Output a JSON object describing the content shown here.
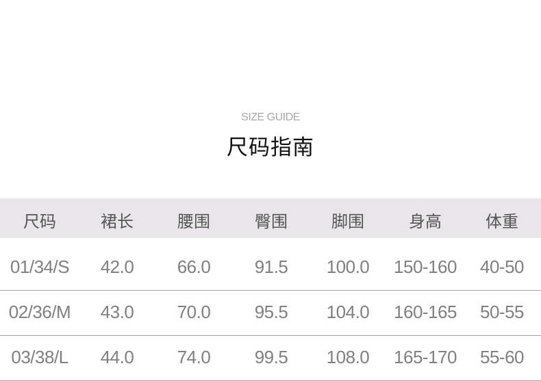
{
  "subtitle": "SIZE GUIDE",
  "title": "尺码指南",
  "table": {
    "headers": [
      "尺码",
      "裙长",
      "腰围",
      "臀围",
      "脚围",
      "身高",
      "体重"
    ],
    "rows": [
      [
        "01/34/S",
        "42.0",
        "66.0",
        "91.5",
        "100.0",
        "150-160",
        "40-50"
      ],
      [
        "02/36/M",
        "43.0",
        "70.0",
        "95.5",
        "104.0",
        "160-165",
        "50-55"
      ],
      [
        "03/38/L",
        "44.0",
        "74.0",
        "99.5",
        "108.0",
        "165-170",
        "55-60"
      ]
    ]
  },
  "colors": {
    "header_bg": "#e8e6e9",
    "text": "#808080",
    "divider": "#a0a0a0"
  }
}
